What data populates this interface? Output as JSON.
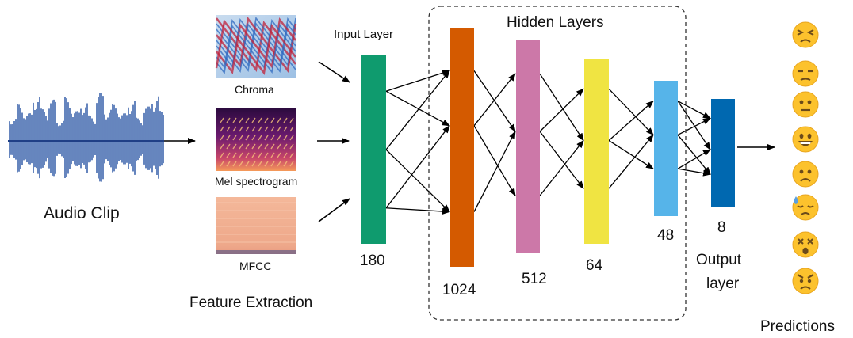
{
  "input": {
    "audio_label": "Audio Clip"
  },
  "features": {
    "section_label": "Feature Extraction",
    "items": [
      {
        "label": "Chroma"
      },
      {
        "label": "Mel spectrogram"
      },
      {
        "label": "MFCC"
      }
    ]
  },
  "network": {
    "input_layer_title": "Input Layer",
    "hidden_title": "Hidden Layers",
    "output_title_line1": "Output",
    "output_title_line2": "layer",
    "layers": [
      {
        "size": "180",
        "color": "#0f9b6e"
      },
      {
        "size": "1024",
        "color": "#d45a00"
      },
      {
        "size": "512",
        "color": "#cc78a8"
      },
      {
        "size": "64",
        "color": "#f0e442"
      },
      {
        "size": "48",
        "color": "#56b4e9"
      },
      {
        "size": "8",
        "color": "#0068b0"
      }
    ]
  },
  "predictions": {
    "label": "Predictions",
    "emojis": [
      "angry-squint-face",
      "unamused-face",
      "neutral-face",
      "grinning-face",
      "frowning-face",
      "sad-sweat-face",
      "dizzy-face",
      "angry-face"
    ]
  }
}
